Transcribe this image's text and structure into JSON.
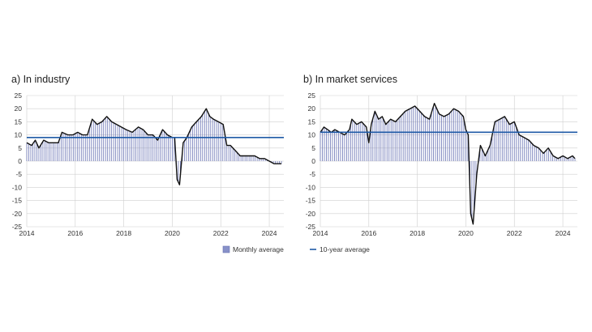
{
  "chart_data": [
    {
      "type": "bar",
      "title": "a) In industry",
      "xlim": [
        2014,
        2024.6
      ],
      "ylim": [
        -25,
        25
      ],
      "yticks": [
        25,
        20,
        15,
        10,
        5,
        0,
        -5,
        -10,
        -15,
        -20,
        -25
      ],
      "xticks": [
        2014,
        2016,
        2018,
        2020,
        2022,
        2024
      ],
      "grid": true,
      "average": 9,
      "monthly": [
        {
          "x": 2014.0,
          "y": 7
        },
        {
          "x": 2014.2,
          "y": 6
        },
        {
          "x": 2014.35,
          "y": 8
        },
        {
          "x": 2014.5,
          "y": 5
        },
        {
          "x": 2014.7,
          "y": 8
        },
        {
          "x": 2014.9,
          "y": 7
        },
        {
          "x": 2015.1,
          "y": 7
        },
        {
          "x": 2015.3,
          "y": 7
        },
        {
          "x": 2015.45,
          "y": 11
        },
        {
          "x": 2015.7,
          "y": 10
        },
        {
          "x": 2015.9,
          "y": 10
        },
        {
          "x": 2016.1,
          "y": 11
        },
        {
          "x": 2016.3,
          "y": 10
        },
        {
          "x": 2016.5,
          "y": 10
        },
        {
          "x": 2016.7,
          "y": 16
        },
        {
          "x": 2016.9,
          "y": 14
        },
        {
          "x": 2017.1,
          "y": 15
        },
        {
          "x": 2017.3,
          "y": 17
        },
        {
          "x": 2017.5,
          "y": 15
        },
        {
          "x": 2017.7,
          "y": 14
        },
        {
          "x": 2017.9,
          "y": 13
        },
        {
          "x": 2018.1,
          "y": 12
        },
        {
          "x": 2018.35,
          "y": 11
        },
        {
          "x": 2018.6,
          "y": 13
        },
        {
          "x": 2018.8,
          "y": 12
        },
        {
          "x": 2019.0,
          "y": 10
        },
        {
          "x": 2019.2,
          "y": 10
        },
        {
          "x": 2019.4,
          "y": 8
        },
        {
          "x": 2019.6,
          "y": 12
        },
        {
          "x": 2019.8,
          "y": 10
        },
        {
          "x": 2020.0,
          "y": 9
        },
        {
          "x": 2020.1,
          "y": 9
        },
        {
          "x": 2020.2,
          "y": -7
        },
        {
          "x": 2020.3,
          "y": -9
        },
        {
          "x": 2020.45,
          "y": 7
        },
        {
          "x": 2020.6,
          "y": 9
        },
        {
          "x": 2020.8,
          "y": 13
        },
        {
          "x": 2021.0,
          "y": 15
        },
        {
          "x": 2021.2,
          "y": 17
        },
        {
          "x": 2021.4,
          "y": 20
        },
        {
          "x": 2021.55,
          "y": 17
        },
        {
          "x": 2021.7,
          "y": 16
        },
        {
          "x": 2021.9,
          "y": 15
        },
        {
          "x": 2022.1,
          "y": 14
        },
        {
          "x": 2022.25,
          "y": 6
        },
        {
          "x": 2022.4,
          "y": 6
        },
        {
          "x": 2022.6,
          "y": 4
        },
        {
          "x": 2022.8,
          "y": 2
        },
        {
          "x": 2023.0,
          "y": 2
        },
        {
          "x": 2023.2,
          "y": 2
        },
        {
          "x": 2023.4,
          "y": 2
        },
        {
          "x": 2023.6,
          "y": 1
        },
        {
          "x": 2023.8,
          "y": 1
        },
        {
          "x": 2024.0,
          "y": 0
        },
        {
          "x": 2024.2,
          "y": -1
        },
        {
          "x": 2024.4,
          "y": -1
        },
        {
          "x": 2024.5,
          "y": -1
        }
      ]
    },
    {
      "type": "bar",
      "title": "b) In market services",
      "xlim": [
        2014,
        2024.6
      ],
      "ylim": [
        -25,
        25
      ],
      "yticks": [
        25,
        20,
        15,
        10,
        5,
        0,
        -5,
        -10,
        -15,
        -20,
        -25
      ],
      "xticks": [
        2014,
        2016,
        2018,
        2020,
        2022,
        2024
      ],
      "grid": true,
      "average": 11,
      "monthly": [
        {
          "x": 2014.0,
          "y": 11
        },
        {
          "x": 2014.15,
          "y": 13
        },
        {
          "x": 2014.3,
          "y": 12
        },
        {
          "x": 2014.45,
          "y": 11
        },
        {
          "x": 2014.6,
          "y": 12
        },
        {
          "x": 2014.8,
          "y": 11
        },
        {
          "x": 2015.0,
          "y": 10
        },
        {
          "x": 2015.2,
          "y": 12
        },
        {
          "x": 2015.3,
          "y": 16
        },
        {
          "x": 2015.5,
          "y": 14
        },
        {
          "x": 2015.7,
          "y": 15
        },
        {
          "x": 2015.9,
          "y": 13
        },
        {
          "x": 2016.0,
          "y": 7
        },
        {
          "x": 2016.1,
          "y": 14
        },
        {
          "x": 2016.25,
          "y": 19
        },
        {
          "x": 2016.4,
          "y": 16
        },
        {
          "x": 2016.55,
          "y": 17
        },
        {
          "x": 2016.7,
          "y": 14
        },
        {
          "x": 2016.9,
          "y": 16
        },
        {
          "x": 2017.1,
          "y": 15
        },
        {
          "x": 2017.3,
          "y": 17
        },
        {
          "x": 2017.5,
          "y": 19
        },
        {
          "x": 2017.7,
          "y": 20
        },
        {
          "x": 2017.9,
          "y": 21
        },
        {
          "x": 2018.1,
          "y": 19
        },
        {
          "x": 2018.3,
          "y": 17
        },
        {
          "x": 2018.5,
          "y": 16
        },
        {
          "x": 2018.7,
          "y": 22
        },
        {
          "x": 2018.9,
          "y": 18
        },
        {
          "x": 2019.1,
          "y": 17
        },
        {
          "x": 2019.3,
          "y": 18
        },
        {
          "x": 2019.5,
          "y": 20
        },
        {
          "x": 2019.7,
          "y": 19
        },
        {
          "x": 2019.9,
          "y": 17
        },
        {
          "x": 2020.0,
          "y": 12
        },
        {
          "x": 2020.1,
          "y": 10
        },
        {
          "x": 2020.2,
          "y": -20
        },
        {
          "x": 2020.3,
          "y": -24
        },
        {
          "x": 2020.45,
          "y": -5
        },
        {
          "x": 2020.6,
          "y": 6
        },
        {
          "x": 2020.8,
          "y": 2
        },
        {
          "x": 2021.0,
          "y": 6
        },
        {
          "x": 2021.2,
          "y": 15
        },
        {
          "x": 2021.4,
          "y": 16
        },
        {
          "x": 2021.6,
          "y": 17
        },
        {
          "x": 2021.8,
          "y": 14
        },
        {
          "x": 2022.0,
          "y": 15
        },
        {
          "x": 2022.2,
          "y": 10
        },
        {
          "x": 2022.4,
          "y": 9
        },
        {
          "x": 2022.6,
          "y": 8
        },
        {
          "x": 2022.8,
          "y": 6
        },
        {
          "x": 2023.0,
          "y": 5
        },
        {
          "x": 2023.2,
          "y": 3
        },
        {
          "x": 2023.4,
          "y": 5
        },
        {
          "x": 2023.6,
          "y": 2
        },
        {
          "x": 2023.8,
          "y": 1
        },
        {
          "x": 2024.0,
          "y": 2
        },
        {
          "x": 2024.2,
          "y": 1
        },
        {
          "x": 2024.4,
          "y": 2
        },
        {
          "x": 2024.5,
          "y": 1
        }
      ]
    }
  ],
  "legend": {
    "monthly_label": "Monthly average",
    "average_label": "10-year average",
    "bar_color": "#8891c9",
    "line_color": "#1f5aa6"
  }
}
